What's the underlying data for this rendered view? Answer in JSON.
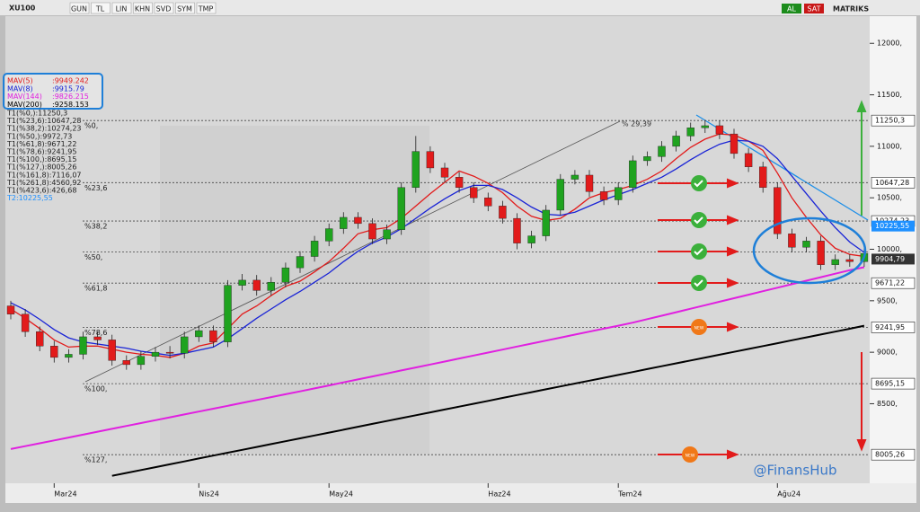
{
  "toolbar": {
    "symbol": "XU100",
    "buttons": [
      "GUN",
      "TL",
      "LIN",
      "KHN",
      "SVD",
      "SYM",
      "TMP"
    ],
    "right": [
      "AL",
      "SAT",
      "MATRIKS"
    ]
  },
  "watermark": "@FinansHub",
  "chart_data": {
    "type": "candlestick",
    "up_color": "#1fa31f",
    "down_color": "#e21b1b",
    "categories": [
      null,
      null,
      null,
      "Mar24",
      null,
      null,
      null,
      null,
      null,
      null,
      null,
      null,
      null,
      "Nis24",
      null,
      null,
      null,
      null,
      null,
      null,
      null,
      null,
      "May24",
      null,
      null,
      null,
      null,
      null,
      null,
      null,
      null,
      null,
      null,
      "Haz24",
      null,
      null,
      null,
      null,
      null,
      null,
      null,
      null,
      "Tem24",
      null,
      null,
      null,
      null,
      null,
      null,
      null,
      null,
      null,
      null,
      "Ağu24",
      null,
      null,
      null,
      null,
      null,
      null
    ],
    "open": [
      9450,
      9370,
      9200,
      9060,
      8950,
      8980,
      9150,
      9120,
      8920,
      8880,
      8960,
      9000,
      8990,
      9150,
      9210,
      9100,
      9650,
      9700,
      9600,
      9680,
      9820,
      9930,
      10080,
      10200,
      10310,
      10250,
      10100,
      10190,
      10600,
      10950,
      10790,
      10700,
      10600,
      10500,
      10420,
      10300,
      10060,
      10130,
      10380,
      10680,
      10720,
      10560,
      10480,
      10600,
      10860,
      10900,
      11000,
      11100,
      11180,
      11200,
      11120,
      10930,
      10800,
      10600,
      10150,
      10020,
      10080,
      9850,
      9900,
      9880
    ],
    "high": [
      9500,
      9420,
      9250,
      9110,
      9030,
      9200,
      9200,
      9170,
      8970,
      9010,
      9050,
      9060,
      9200,
      9260,
      9260,
      9700,
      9760,
      9750,
      9730,
      9870,
      9980,
      10130,
      10250,
      10360,
      10360,
      10300,
      10240,
      10650,
      11100,
      11000,
      10840,
      10750,
      10650,
      10550,
      10470,
      10350,
      10180,
      10430,
      10730,
      10770,
      10770,
      10610,
      10650,
      10910,
      10950,
      11050,
      11150,
      11230,
      11250,
      11250,
      11170,
      10980,
      10850,
      10650,
      10200,
      10120,
      10130,
      9950,
      9950,
      10010
    ],
    "low": [
      9320,
      9150,
      9010,
      8900,
      8900,
      8930,
      9070,
      8870,
      8830,
      8830,
      8910,
      8940,
      8940,
      9100,
      9050,
      9050,
      9600,
      9550,
      9550,
      9630,
      9770,
      9880,
      10030,
      10150,
      10200,
      10050,
      10050,
      10140,
      10550,
      10740,
      10650,
      10550,
      10450,
      10370,
      10250,
      10000,
      10010,
      10080,
      10330,
      10630,
      10510,
      10430,
      10430,
      10550,
      10810,
      10850,
      10950,
      11050,
      11130,
      11070,
      10880,
      10750,
      10550,
      10100,
      9970,
      9970,
      9800,
      9800,
      9830,
      9830
    ],
    "close": [
      9370,
      9200,
      9060,
      8950,
      8980,
      9150,
      9120,
      8920,
      8880,
      8960,
      9000,
      8990,
      9150,
      9210,
      9100,
      9650,
      9700,
      9600,
      9680,
      9820,
      9930,
      10080,
      10200,
      10310,
      10250,
      10100,
      10190,
      10600,
      10950,
      10790,
      10700,
      10600,
      10500,
      10420,
      10300,
      10060,
      10130,
      10380,
      10680,
      10720,
      10560,
      10480,
      10600,
      10860,
      10900,
      11000,
      11100,
      11180,
      11200,
      11120,
      10930,
      10800,
      10600,
      10150,
      10020,
      10080,
      9850,
      9900,
      9880,
      9960
    ],
    "series": [
      {
        "name": "MAV(5)",
        "legend_value": ":9949.242",
        "color": "#e21b1b",
        "values": [
          9420,
          9330,
          9230,
          9120,
          9050,
          9060,
          9060,
          9030,
          9000,
          8980,
          8970,
          8950,
          8990,
          9060,
          9090,
          9230,
          9370,
          9450,
          9550,
          9640,
          9690,
          9780,
          9880,
          10010,
          10150,
          10190,
          10210,
          10300,
          10420,
          10540,
          10650,
          10760,
          10710,
          10640,
          10550,
          10420,
          10320,
          10280,
          10300,
          10390,
          10500,
          10550,
          10580,
          10620,
          10680,
          10760,
          10880,
          10990,
          11070,
          11120,
          11110,
          11050,
          10960,
          10740,
          10500,
          10310,
          10140,
          10010,
          9950,
          9930
        ]
      },
      {
        "name": "MAV(8)",
        "legend_value": ":9915.79",
        "color": "#1a24d6",
        "values": [
          9480,
          9410,
          9320,
          9220,
          9140,
          9100,
          9080,
          9060,
          9040,
          9010,
          8990,
          8970,
          8990,
          9020,
          9050,
          9130,
          9230,
          9330,
          9420,
          9510,
          9590,
          9680,
          9770,
          9880,
          9980,
          10060,
          10120,
          10200,
          10300,
          10400,
          10490,
          10570,
          10620,
          10620,
          10580,
          10500,
          10410,
          10340,
          10330,
          10360,
          10420,
          10480,
          10530,
          10580,
          10640,
          10700,
          10780,
          10870,
          10950,
          11020,
          11060,
          11050,
          11000,
          10880,
          10710,
          10540,
          10370,
          10210,
          10070,
          9970
        ]
      },
      {
        "name": "MAV(144)",
        "legend_value": ":9826.215",
        "color": "#e020e0",
        "values": [
          8060,
          8088,
          8116,
          8144,
          8172,
          8200,
          8228,
          8256,
          8284,
          8312,
          8340,
          8368,
          8396,
          8424,
          8452,
          8480,
          8508,
          8536,
          8564,
          8592,
          8620,
          8649,
          8678,
          8707,
          8736,
          8765,
          8794,
          8823,
          8852,
          8881,
          8910,
          8939,
          8968,
          8997,
          9026,
          9055,
          9084,
          9113,
          9142,
          9171,
          9200,
          9229,
          9258,
          9287,
          9321,
          9355,
          9389,
          9423,
          9457,
          9491,
          9525,
          9559,
          9593,
          9627,
          9661,
          9695,
          9729,
          9763,
          9797,
          9826
        ]
      },
      {
        "name": "MAV(200)",
        "legend_value": ":9258.153",
        "color": "#000000",
        "values": [
          null,
          null,
          null,
          null,
          null,
          null,
          null,
          7800,
          7828,
          7856,
          7884,
          7912,
          7940,
          7968,
          7996,
          8024,
          8052,
          8080,
          8108,
          8136,
          8164,
          8192,
          8220,
          8248,
          8276,
          8304,
          8332,
          8360,
          8388,
          8416,
          8444,
          8472,
          8500,
          8528,
          8556,
          8584,
          8612,
          8640,
          8668,
          8696,
          8724,
          8752,
          8780,
          8808,
          8836,
          8864,
          8892,
          8920,
          8948,
          8976,
          9004,
          9032,
          9060,
          9088,
          9116,
          9144,
          9172,
          9200,
          9228,
          9258
        ]
      }
    ],
    "ylim": [
      7780,
      12290
    ],
    "yticks": [
      {
        "value": 8500,
        "label": "8500,"
      },
      {
        "value": 9000,
        "label": "9000,"
      },
      {
        "value": 9500,
        "label": "9500,"
      },
      {
        "value": 10000,
        "label": "10000,"
      },
      {
        "value": 10500,
        "label": "10500,"
      },
      {
        "value": 11000,
        "label": "11000,"
      },
      {
        "value": 11500,
        "label": "11500,"
      },
      {
        "value": 12000,
        "label": "12000,"
      }
    ],
    "levels": [
      {
        "name": "%0,",
        "value": 11250.3,
        "label": "11250,3"
      },
      {
        "name": "%23,6",
        "value": 10647.28,
        "label": "10647,28"
      },
      {
        "name": "%38,2",
        "value": 10274.23,
        "label": "10274,23"
      },
      {
        "name": "%50,",
        "value": 9972.73
      },
      {
        "name": "%61,8",
        "value": 9671.22,
        "label": "9671,22"
      },
      {
        "name": "%78,6",
        "value": 9241.95,
        "label": "9241,95"
      },
      {
        "name": "%100,",
        "value": 8695.15,
        "label": "8695,15"
      },
      {
        "name": "%127,",
        "value": 8005.26,
        "label": "8005,26"
      }
    ],
    "price_markers": [
      {
        "value": 10225.55,
        "label": "10225,55",
        "color": "#1e90ff"
      },
      {
        "value": 9904.79,
        "label": "9904,79",
        "color": "#333333"
      }
    ],
    "fib_table": [
      "T1(%0,):11250,3",
      "T1(%23,6):10647,28",
      "T1(%38,2):10274,23",
      "T1(%50,):9972,73",
      "T1(%61,8):9671,22",
      "T1(%78,6):9241,95",
      "T1(%100,):8695,15",
      "T1(%127,):8005,26",
      "T1(%161,8):7116,07",
      "T1(%261,8):4560,92",
      "T1(%423,6):426,68"
    ],
    "t2_label": "T2:10225,55",
    "trend_annotation": "% 29,39",
    "new_badge": "NEW"
  }
}
